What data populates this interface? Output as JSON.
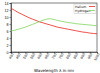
{
  "chart_data": {
    "type": "line",
    "x_label": "Wavelength λ in nm",
    "x": [
      400,
      425,
      450,
      475,
      500,
      525,
      550,
      575,
      600,
      625,
      650,
      675,
      700,
      725,
      750,
      775,
      800,
      825,
      850,
      875,
      900,
      925,
      950,
      975,
      1000
    ],
    "series": [
      {
        "name": "Helium",
        "color": "#e8251d",
        "values": [
          12.5,
          11.9,
          11.3,
          10.8,
          10.3,
          9.8,
          9.4,
          9.0,
          8.6,
          8.3,
          8.0,
          7.7,
          7.4,
          7.1,
          6.9,
          6.7,
          6.5,
          6.3,
          6.1,
          5.9,
          5.7,
          5.6,
          5.4,
          5.3,
          5.2
        ]
      },
      {
        "name": "Hydrogen",
        "color": "#7fd35a",
        "values": [
          6.0,
          6.2,
          6.5,
          6.8,
          7.1,
          7.5,
          7.9,
          8.3,
          8.7,
          9.1,
          9.4,
          9.5,
          9.3,
          9.0,
          8.8,
          8.6,
          8.4,
          8.3,
          8.1,
          8.0,
          7.9,
          7.8,
          7.7,
          7.6,
          7.5
        ]
      }
    ],
    "xlim": [
      400,
      1000
    ],
    "xticks": [
      400,
      450,
      500,
      550,
      600,
      650,
      700,
      750,
      800,
      850,
      900,
      950,
      1000
    ],
    "ylim": [
      0,
      14
    ],
    "yticks": [
      0,
      2,
      4,
      6,
      8,
      10,
      12,
      14
    ],
    "grid": false,
    "legend": "upper right"
  }
}
